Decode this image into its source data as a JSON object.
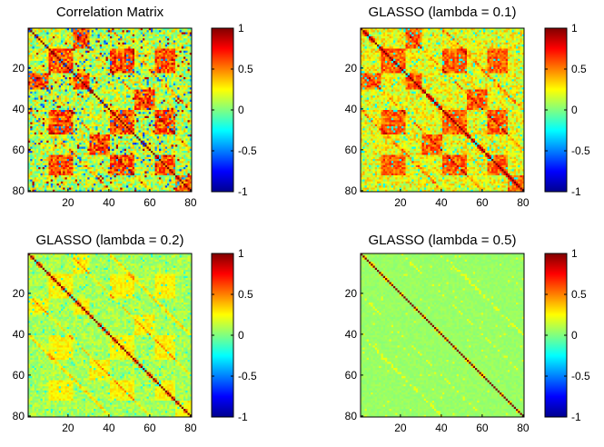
{
  "figure": {
    "description_colormap": "jet",
    "grid": false
  },
  "chart_data": [
    {
      "type": "heatmap",
      "title": "Correlation Matrix",
      "matrix_size": 80,
      "xticks": [
        20,
        40,
        60,
        80
      ],
      "yticks": [
        20,
        40,
        60,
        80
      ],
      "clim": [
        -1,
        1
      ],
      "diagonal_value": 1,
      "offdiag_profile": "dense",
      "colorbar_ticks": [
        "1",
        "0.5",
        "0",
        "-0.5",
        "-1"
      ]
    },
    {
      "type": "heatmap",
      "title": "GLASSO (lambda = 0.1)",
      "matrix_size": 80,
      "xticks": [
        20,
        40,
        60,
        80
      ],
      "yticks": [
        20,
        40,
        60,
        80
      ],
      "clim": [
        -1,
        1
      ],
      "diagonal_value": 1,
      "offdiag_profile": "moderate",
      "colorbar_ticks": [
        "1",
        "0.5",
        "0",
        "-0.5",
        "-1"
      ]
    },
    {
      "type": "heatmap",
      "title": "GLASSO (lambda = 0.2)",
      "matrix_size": 80,
      "xticks": [
        20,
        40,
        60,
        80
      ],
      "yticks": [
        20,
        40,
        60,
        80
      ],
      "clim": [
        -1,
        1
      ],
      "diagonal_value": 1,
      "offdiag_profile": "sparse",
      "colorbar_ticks": [
        "1",
        "0.5",
        "0",
        "-0.5",
        "-1"
      ]
    },
    {
      "type": "heatmap",
      "title": "GLASSO (lambda = 0.5)",
      "matrix_size": 80,
      "xticks": [
        20,
        40,
        60,
        80
      ],
      "yticks": [
        20,
        40,
        60,
        80
      ],
      "clim": [
        -1,
        1
      ],
      "diagonal_value": 1,
      "offdiag_profile": "very-sparse",
      "colorbar_ticks": [
        "1",
        "0.5",
        "0",
        "-0.5",
        "-1"
      ]
    }
  ]
}
